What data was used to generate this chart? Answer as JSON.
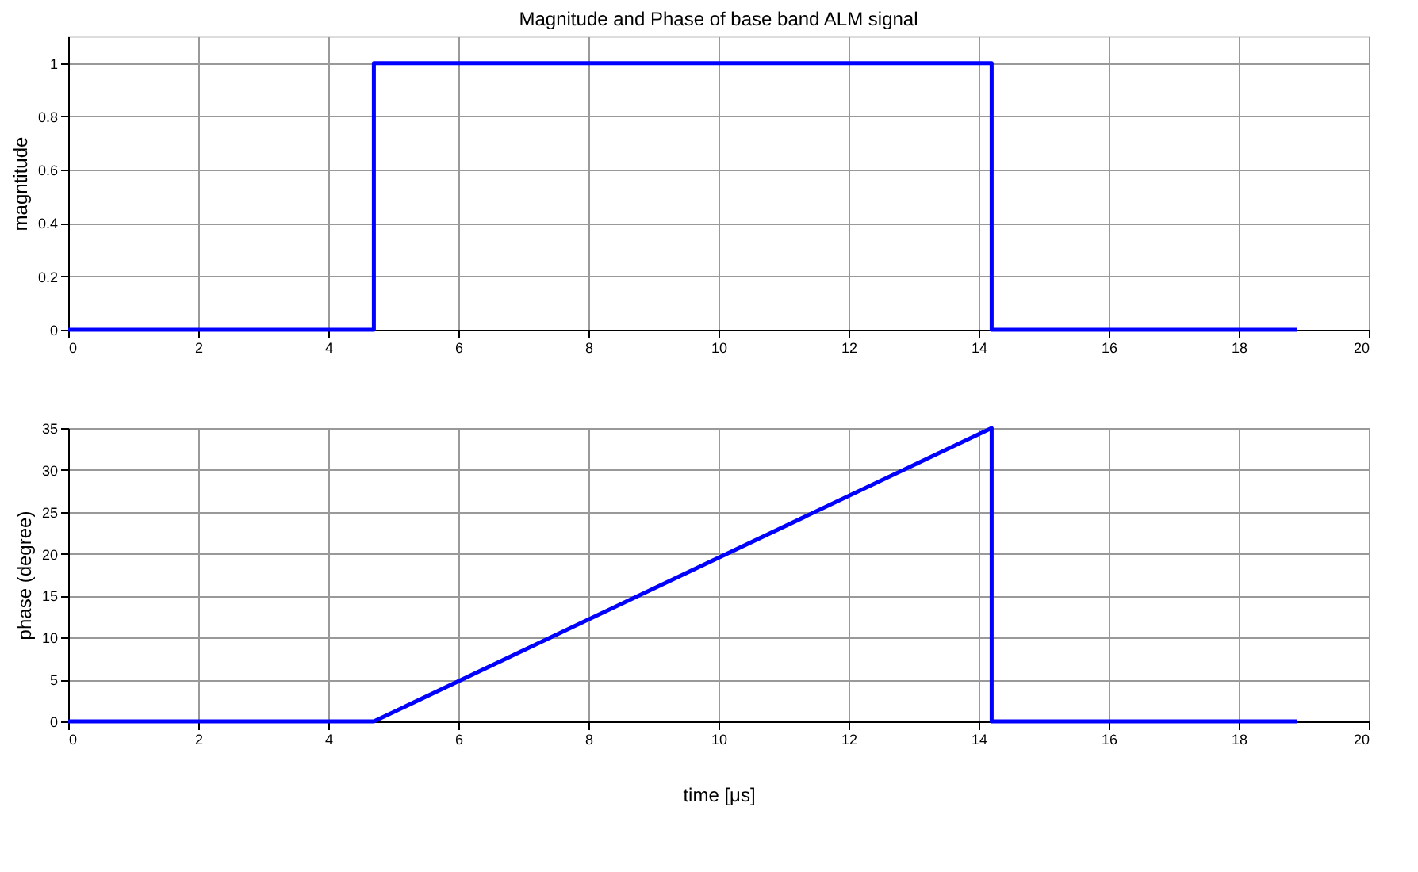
{
  "chart_data": [
    {
      "type": "line",
      "title": "Magnitude and Phase of base band ALM signal",
      "ylabel": "magntitude",
      "xlim": [
        0,
        20
      ],
      "xticks": [
        0,
        2,
        4,
        6,
        8,
        10,
        12,
        14,
        16,
        18,
        20
      ],
      "ylim": [
        0,
        1.1
      ],
      "yticks": [
        0,
        0.2,
        0.4,
        0.6,
        0.8,
        1
      ],
      "grid": true,
      "series": [
        {
          "color": "#0000ff",
          "x": [
            0,
            4.7,
            4.7,
            14.2,
            14.2,
            18.9
          ],
          "values": [
            0,
            0,
            1,
            1,
            0,
            0
          ]
        }
      ]
    },
    {
      "type": "line",
      "xlabel": "time [μs]",
      "ylabel": "phase (degree)",
      "xlim": [
        0,
        20
      ],
      "xticks": [
        0,
        2,
        4,
        6,
        8,
        10,
        12,
        14,
        16,
        18,
        20
      ],
      "ylim": [
        0,
        35
      ],
      "yticks": [
        0,
        5,
        10,
        15,
        20,
        25,
        30,
        35
      ],
      "grid": true,
      "series": [
        {
          "color": "#0000ff",
          "x": [
            0,
            4.7,
            14.2,
            14.2,
            18.9
          ],
          "values": [
            0,
            0,
            35,
            0,
            0
          ]
        }
      ]
    }
  ]
}
